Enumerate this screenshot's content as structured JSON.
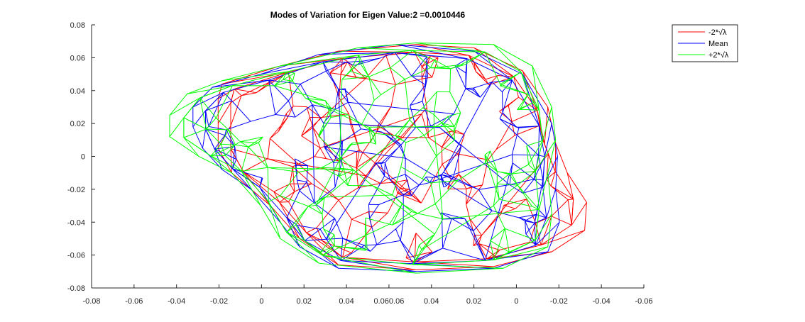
{
  "chart_data": {
    "type": "line",
    "title": "Modes of Variation for Eigen Value:2 =0.0010446",
    "x_tick_labels": [
      "-0.08",
      "-0.06",
      "-0.04",
      "-0.02",
      "0",
      "0.02",
      "0.04",
      "0.060.06",
      "0.04",
      "0.02",
      "0",
      "-0.02",
      "-0.04",
      "-0.06"
    ],
    "y_ticks": [
      -0.08,
      -0.06,
      -0.04,
      -0.02,
      0,
      0.02,
      0.04,
      0.06,
      0.08
    ],
    "y_tick_labels": [
      "-0.08",
      "-0.06",
      "-0.04",
      "-0.02",
      "0",
      "0.02",
      "0.04",
      "0.06",
      "0.08"
    ],
    "ylim": [
      -0.08,
      0.08
    ],
    "grid": false,
    "legend_position": "top-right",
    "series": [
      {
        "name": "-2*√λ",
        "color": "#ff0000",
        "outline": [
          [
            -0.01,
            0.044
          ],
          [
            0.02,
            0.055
          ],
          [
            0.05,
            0.064
          ],
          [
            0.09,
            0.068
          ],
          [
            0.12,
            0.066
          ],
          [
            0.145,
            0.052
          ],
          [
            0.158,
            0.03
          ],
          [
            0.162,
            0.008
          ],
          [
            0.168,
            -0.01
          ],
          [
            0.178,
            -0.028
          ],
          [
            0.177,
            -0.045
          ],
          [
            0.16,
            -0.058
          ],
          [
            0.13,
            -0.067
          ],
          [
            0.09,
            -0.069
          ],
          [
            0.05,
            -0.066
          ],
          [
            0.03,
            -0.05
          ],
          [
            0.015,
            -0.03
          ],
          [
            -0.005,
            -0.01
          ],
          [
            -0.012,
            0.005
          ],
          [
            -0.012,
            0.02
          ],
          [
            -0.012,
            0.035
          ]
        ]
      },
      {
        "name": "Mean",
        "color": "#0000ff",
        "outline": [
          [
            -0.025,
            0.03
          ],
          [
            -0.015,
            0.042
          ],
          [
            0.01,
            0.05
          ],
          [
            0.04,
            0.062
          ],
          [
            0.08,
            0.068
          ],
          [
            0.12,
            0.064
          ],
          [
            0.145,
            0.05
          ],
          [
            0.16,
            0.02
          ],
          [
            0.163,
            0.0
          ],
          [
            0.162,
            -0.02
          ],
          [
            0.164,
            -0.04
          ],
          [
            0.158,
            -0.058
          ],
          [
            0.13,
            -0.068
          ],
          [
            0.09,
            -0.07
          ],
          [
            0.05,
            -0.068
          ],
          [
            0.03,
            -0.055
          ],
          [
            0.02,
            -0.04
          ],
          [
            0.005,
            -0.02
          ],
          [
            -0.01,
            -0.008
          ],
          [
            -0.02,
            0.005
          ],
          [
            -0.025,
            0.018
          ]
        ]
      },
      {
        "name": "+2*√λ",
        "color": "#00ff00",
        "outline": [
          [
            -0.037,
            0.012
          ],
          [
            -0.037,
            0.025
          ],
          [
            -0.028,
            0.038
          ],
          [
            -0.01,
            0.046
          ],
          [
            0.02,
            0.055
          ],
          [
            0.06,
            0.066
          ],
          [
            0.09,
            0.069
          ],
          [
            0.13,
            0.068
          ],
          [
            0.15,
            0.055
          ],
          [
            0.16,
            0.03
          ],
          [
            0.162,
            0.01
          ],
          [
            0.158,
            -0.01
          ],
          [
            0.16,
            -0.035
          ],
          [
            0.158,
            -0.055
          ],
          [
            0.135,
            -0.068
          ],
          [
            0.09,
            -0.071
          ],
          [
            0.04,
            -0.065
          ],
          [
            0.02,
            -0.05
          ],
          [
            0.01,
            -0.03
          ],
          [
            -0.005,
            -0.01
          ],
          [
            -0.022,
            0.0
          ]
        ]
      }
    ]
  }
}
